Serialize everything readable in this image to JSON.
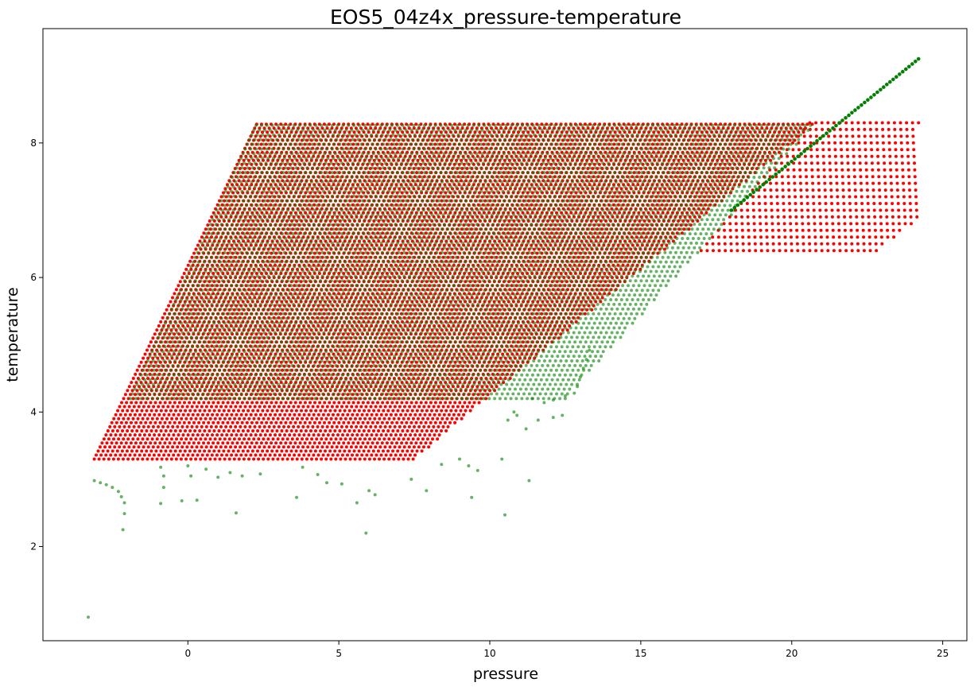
{
  "chart_data": {
    "type": "scatter",
    "title": "EOS5_04z4x_pressure-temperature",
    "xlabel": "pressure",
    "ylabel": "temperature",
    "xlim": [
      -4.8,
      25.8
    ],
    "ylim": [
      0.6,
      9.7
    ],
    "xticks": [
      0,
      5,
      10,
      15,
      20,
      25
    ],
    "yticks": [
      2,
      4,
      6,
      8
    ],
    "grid": false,
    "legend": "none",
    "colors": {
      "red_series": "#ff0000",
      "green_series": "#008000",
      "overlap": "#556b00"
    },
    "series": [
      {
        "color": "#ff0000",
        "marker_size": 2,
        "opacity": 1.0,
        "regions": [
          {
            "kind": "parallelogram",
            "t_min": 3.3,
            "t_max": 8.3,
            "p_left_at_tmin": -3.1,
            "p_left_at_tmax": 2.3,
            "p_right_at_tmin": 7.5,
            "p_right_at_tmax": 20.8,
            "t_step": 0.06,
            "p_step": 0.16
          },
          {
            "kind": "rectangle_wedge",
            "t_min": 6.4,
            "t_max": 8.3,
            "p_min": 17.0,
            "p_max": 24.2,
            "t_step": 0.1,
            "p_step": 0.2
          }
        ]
      },
      {
        "color": "#008000",
        "marker_size": 2,
        "opacity": 0.6,
        "regions": [
          {
            "kind": "parallelogram",
            "t_min": 4.2,
            "t_max": 8.3,
            "p_left_at_tmin": -1.9,
            "p_left_at_tmax": 2.3,
            "p_right_at_tmin": 12.5,
            "p_right_at_tmax": 20.8,
            "t_step": 0.07,
            "p_step": 0.18
          },
          {
            "kind": "diagonal_band",
            "p_start": 18.0,
            "t_start": 7.0,
            "p_end": 24.2,
            "t_end": 9.25,
            "count": 60
          }
        ],
        "outliers": [
          [
            -3.1,
            2.98
          ],
          [
            -2.9,
            2.95
          ],
          [
            -2.7,
            2.92
          ],
          [
            -2.5,
            2.88
          ],
          [
            -2.3,
            2.82
          ],
          [
            -2.2,
            2.74
          ],
          [
            -2.1,
            2.65
          ],
          [
            -2.1,
            2.49
          ],
          [
            -2.15,
            2.25
          ],
          [
            -0.9,
            3.18
          ],
          [
            -0.8,
            3.05
          ],
          [
            -0.8,
            2.88
          ],
          [
            -0.9,
            2.64
          ],
          [
            0.0,
            3.2
          ],
          [
            0.1,
            3.05
          ],
          [
            -0.2,
            2.68
          ],
          [
            0.3,
            2.69
          ],
          [
            0.6,
            3.15
          ],
          [
            1.0,
            3.03
          ],
          [
            1.4,
            3.1
          ],
          [
            1.8,
            3.05
          ],
          [
            1.6,
            2.5
          ],
          [
            2.4,
            3.08
          ],
          [
            3.6,
            2.73
          ],
          [
            3.8,
            3.18
          ],
          [
            4.3,
            3.07
          ],
          [
            4.6,
            2.95
          ],
          [
            5.1,
            2.93
          ],
          [
            5.6,
            2.65
          ],
          [
            5.9,
            2.2
          ],
          [
            6.0,
            2.83
          ],
          [
            6.2,
            2.77
          ],
          [
            7.4,
            3.0
          ],
          [
            7.9,
            2.83
          ],
          [
            8.4,
            3.22
          ],
          [
            9.0,
            3.3
          ],
          [
            9.3,
            3.2
          ],
          [
            9.4,
            2.73
          ],
          [
            9.6,
            3.13
          ],
          [
            10.5,
            2.47
          ],
          [
            10.4,
            3.3
          ],
          [
            11.3,
            2.98
          ],
          [
            11.6,
            3.88
          ],
          [
            12.1,
            3.92
          ],
          [
            12.4,
            3.95
          ],
          [
            10.9,
            3.95
          ],
          [
            11.2,
            3.75
          ],
          [
            10.6,
            3.88
          ],
          [
            12.1,
            4.18
          ],
          [
            12.5,
            4.24
          ],
          [
            12.8,
            4.28
          ],
          [
            12.9,
            4.38
          ],
          [
            13.0,
            4.52
          ],
          [
            13.1,
            4.65
          ],
          [
            13.2,
            4.78
          ],
          [
            13.3,
            4.92
          ],
          [
            11.8,
            4.14
          ],
          [
            11.4,
            4.2
          ],
          [
            10.8,
            4.0
          ],
          [
            -3.3,
            0.95
          ]
        ]
      }
    ]
  }
}
